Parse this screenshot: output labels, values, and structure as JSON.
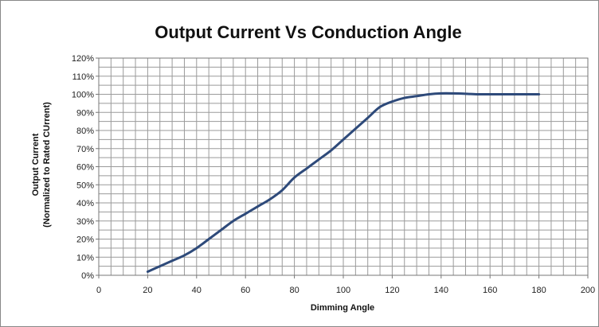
{
  "chart_data": {
    "type": "line",
    "title": "Output Current Vs Conduction Angle",
    "xlabel": "Dimming  Angle",
    "ylabel_lines": [
      "Output Current",
      "(Normalized to Rated CUrrent)"
    ],
    "xlim": [
      0,
      200
    ],
    "ylim": [
      0,
      120
    ],
    "x_ticks": [
      0,
      20,
      40,
      60,
      80,
      100,
      120,
      140,
      160,
      180,
      200
    ],
    "y_ticks": [
      0,
      10,
      20,
      30,
      40,
      50,
      60,
      70,
      80,
      90,
      100,
      110,
      120
    ],
    "y_tick_labels": [
      "0%",
      "10%",
      "20%",
      "30%",
      "40%",
      "50%",
      "60%",
      "70%",
      "80%",
      "90%",
      "100%",
      "110%",
      "120%"
    ],
    "x_tick_labels": [
      "0",
      "20",
      "40",
      "60",
      "80",
      "100",
      "120",
      "140",
      "160",
      "180",
      "200"
    ],
    "grid": true,
    "series": [
      {
        "color": "#2e4a7a",
        "x": [
          20,
          25,
          30,
          35,
          40,
          45,
          50,
          55,
          60,
          65,
          70,
          75,
          80,
          85,
          90,
          95,
          100,
          105,
          110,
          115,
          120,
          125,
          130,
          135,
          140,
          145,
          150,
          155,
          160,
          165,
          170,
          175,
          180
        ],
        "y": [
          2,
          5,
          8,
          11,
          15,
          20,
          25,
          30,
          34,
          38,
          42,
          47,
          54,
          59,
          64,
          69,
          75,
          81,
          87,
          93,
          96,
          98,
          99,
          100,
          100.5,
          100.5,
          100.3,
          100,
          100,
          100,
          100,
          100,
          100
        ]
      }
    ]
  }
}
